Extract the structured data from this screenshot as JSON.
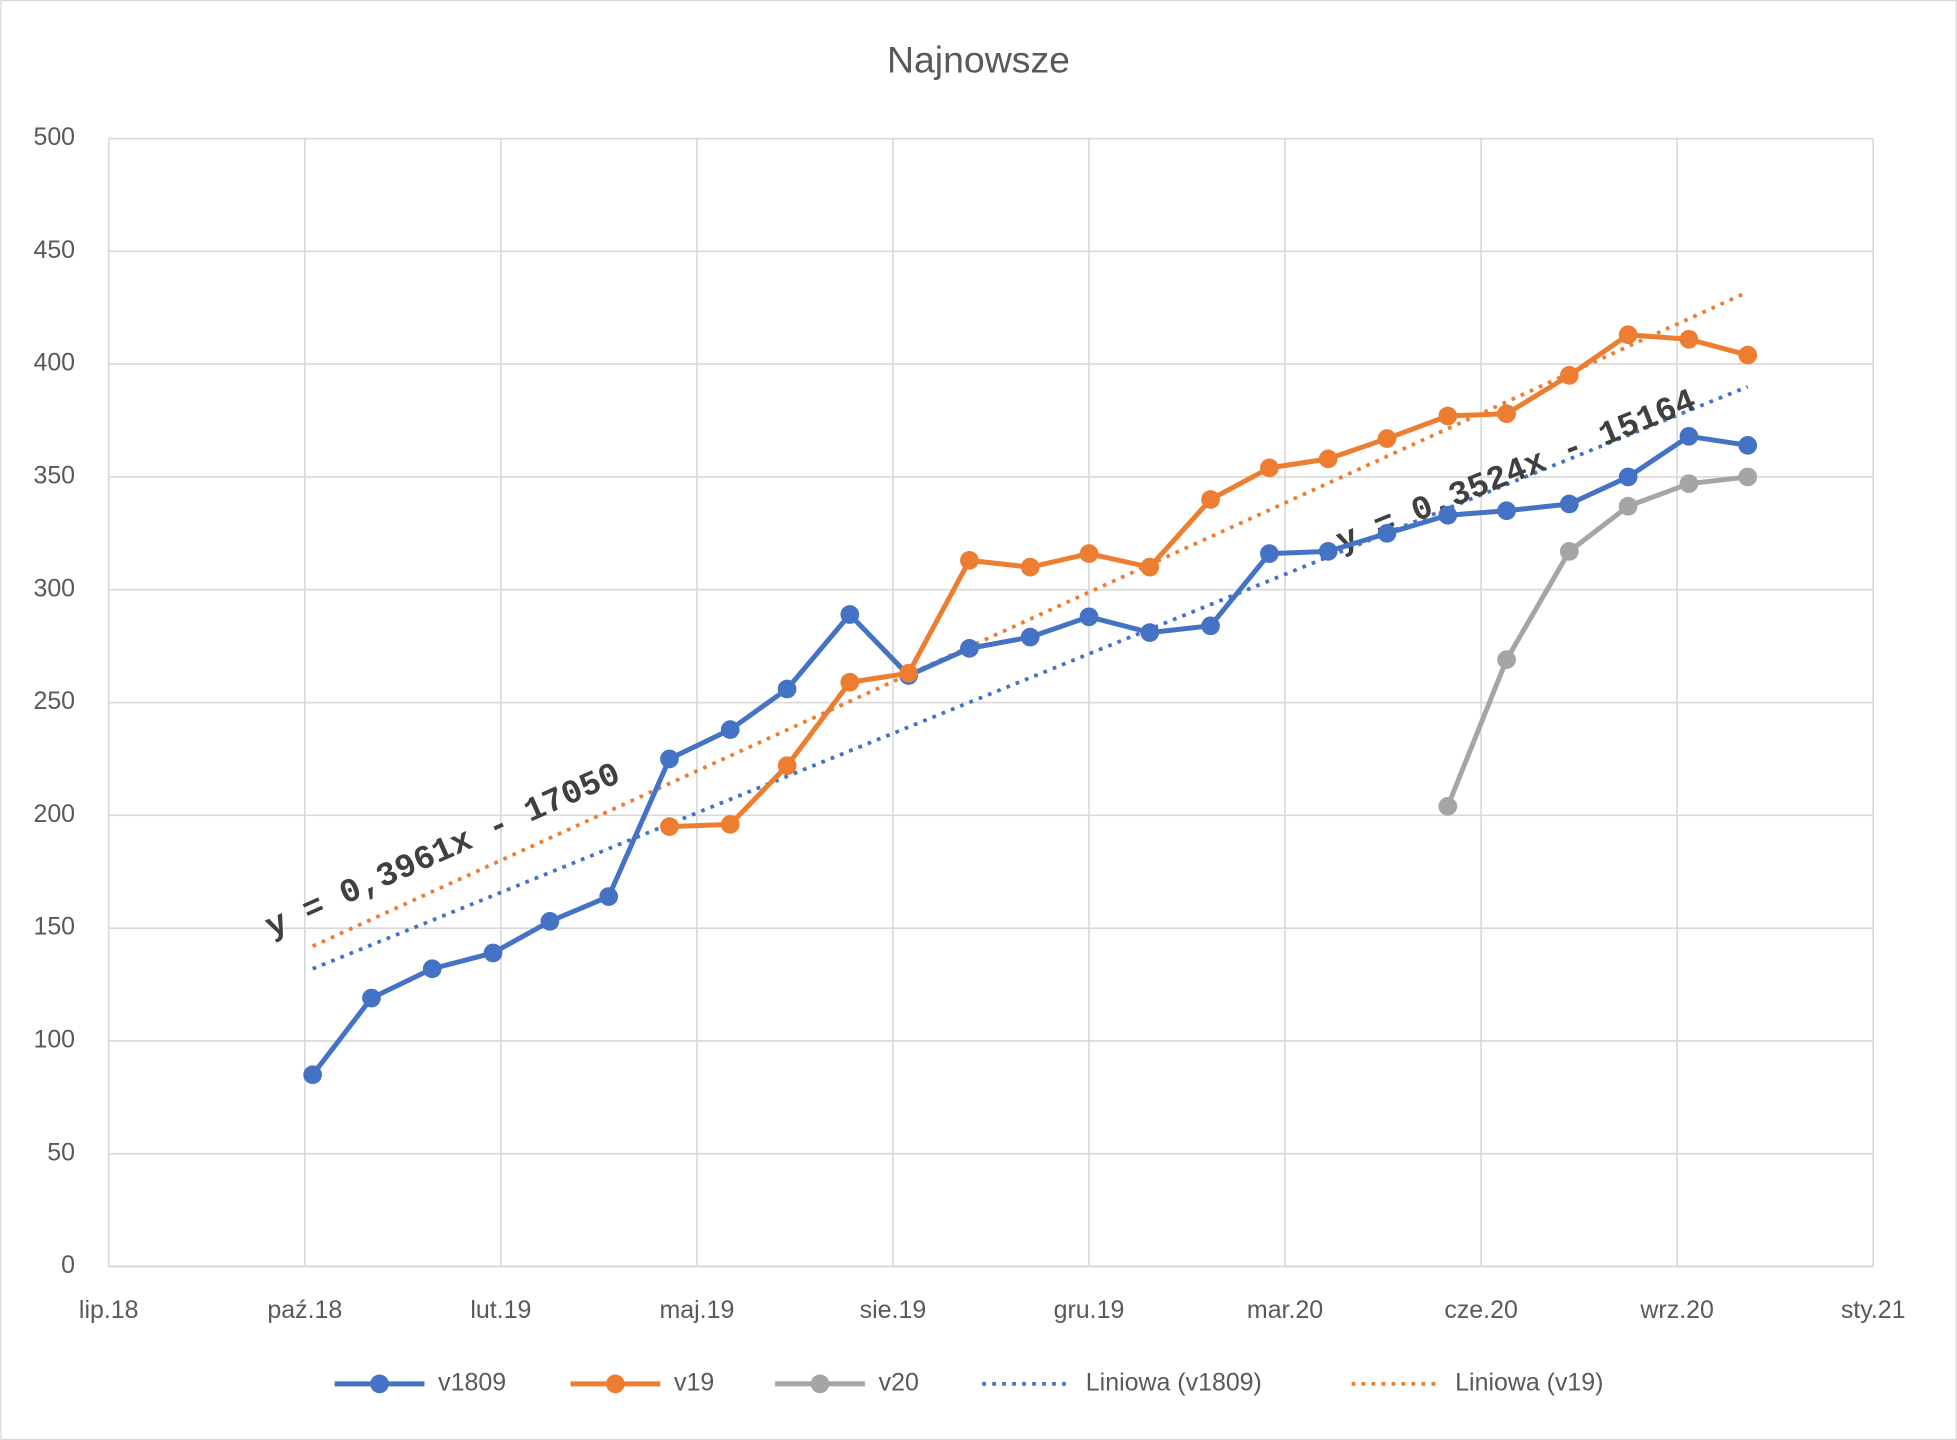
{
  "chart_data": {
    "type": "line",
    "title": "Najnowsze",
    "x": [
      43404,
      43434,
      43465,
      43496,
      43525,
      43555,
      43586,
      43617,
      43646,
      43678,
      43708,
      43739,
      43770,
      43800,
      43831,
      43862,
      43892,
      43922,
      43952,
      43983,
      44013,
      44045,
      44075,
      44106,
      44136
    ],
    "series": [
      {
        "name": "v1809",
        "color": "#4472c4",
        "values": [
          85,
          119,
          132,
          139,
          153,
          164,
          225,
          238,
          256,
          289,
          262,
          274,
          279,
          288,
          281,
          284,
          316,
          317,
          325,
          333,
          335,
          338,
          350,
          368,
          364
        ]
      },
      {
        "name": "v19",
        "color": "#ed7d31",
        "values": [
          null,
          null,
          null,
          null,
          null,
          null,
          195,
          196,
          222,
          259,
          263,
          313,
          310,
          316,
          310,
          340,
          354,
          358,
          367,
          377,
          378,
          395,
          413,
          411,
          404
        ]
      },
      {
        "name": "v20",
        "color": "#a5a5a5",
        "values": [
          null,
          null,
          null,
          null,
          null,
          null,
          null,
          null,
          null,
          null,
          null,
          null,
          null,
          null,
          null,
          null,
          null,
          null,
          null,
          204,
          269,
          317,
          337,
          347,
          350
        ]
      }
    ],
    "trendlines": [
      {
        "name": "Liniowa (v1809)",
        "color": "#4472c4",
        "x": [
          43404,
          44136
        ],
        "values": [
          132,
          390
        ],
        "equation": "y = 0,3524x - 15164"
      },
      {
        "name": "Liniowa (v19)",
        "color": "#ed7d31",
        "x": [
          43404,
          44136
        ],
        "values": [
          142,
          432
        ],
        "equation": "y = 0,3961x - 17050"
      }
    ],
    "xlim": [
      43300,
      44200
    ],
    "xticks": [
      {
        "value": 43300,
        "label": "lip.18"
      },
      {
        "value": 43400,
        "label": "paź.18"
      },
      {
        "value": 43500,
        "label": "lut.19"
      },
      {
        "value": 43600,
        "label": "maj.19"
      },
      {
        "value": 43700,
        "label": "sie.19"
      },
      {
        "value": 43800,
        "label": "gru.19"
      },
      {
        "value": 43900,
        "label": "mar.20"
      },
      {
        "value": 44000,
        "label": "cze.20"
      },
      {
        "value": 44100,
        "label": "wrz.20"
      },
      {
        "value": 44200,
        "label": "sty.21"
      }
    ],
    "ylim": [
      0,
      500
    ],
    "yticks": [
      0,
      50,
      100,
      150,
      200,
      250,
      300,
      350,
      400,
      450,
      500
    ],
    "grid": true,
    "legend": "bottom"
  }
}
